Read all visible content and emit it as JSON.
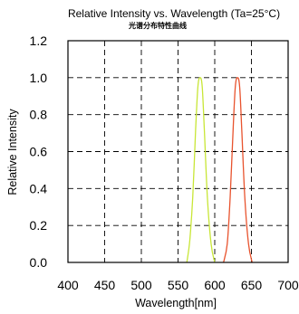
{
  "chart_data": {
    "type": "line",
    "title": "Relative Intensity vs. Wavelength (Ta=25°C)",
    "subtitle": "光谱分布特性曲线",
    "xlabel": "Wavelength[nm]",
    "ylabel": "Relative Intensity",
    "xlim": [
      400,
      700
    ],
    "ylim": [
      0,
      1.2
    ],
    "x_ticks": [
      "400",
      "450",
      "500",
      "550",
      "600",
      "650",
      "700"
    ],
    "y_ticks": [
      "0.0",
      "0.2",
      "0.4",
      "0.6",
      "0.8",
      "1.0",
      "1.2"
    ],
    "grid": true,
    "series": [
      {
        "color": "#c8e636",
        "x": [
          562,
          566,
          570,
          574,
          577,
          580,
          583,
          586,
          590,
          595,
          600
        ],
        "y": [
          0.0,
          0.12,
          0.35,
          0.72,
          0.95,
          1.0,
          0.95,
          0.7,
          0.35,
          0.1,
          0.0
        ]
      },
      {
        "color": "#e8532e",
        "x": [
          612,
          617,
          621,
          625,
          628,
          631,
          634,
          637,
          641,
          646,
          651
        ],
        "y": [
          0.0,
          0.1,
          0.35,
          0.72,
          0.95,
          1.0,
          0.95,
          0.7,
          0.35,
          0.1,
          0.0
        ]
      }
    ]
  }
}
